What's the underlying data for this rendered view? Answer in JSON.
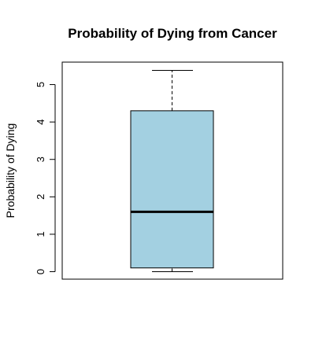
{
  "chart_data": {
    "type": "boxplot",
    "title": "Probability of Dying from Cancer",
    "xlabel": "",
    "ylabel": "Probability of Dying",
    "ylim": [
      -0.2,
      5.6
    ],
    "yticks": [
      0,
      1,
      2,
      3,
      4,
      5
    ],
    "ytick_labels": [
      "0",
      "1",
      "2",
      "3",
      "4",
      "5"
    ],
    "grid": false,
    "box": {
      "min": 0.0,
      "q1": 0.1,
      "median": 1.6,
      "q3": 4.3,
      "max": 5.38
    },
    "colors": {
      "box_fill": "#a3d0e1",
      "stroke": "#000000"
    }
  }
}
